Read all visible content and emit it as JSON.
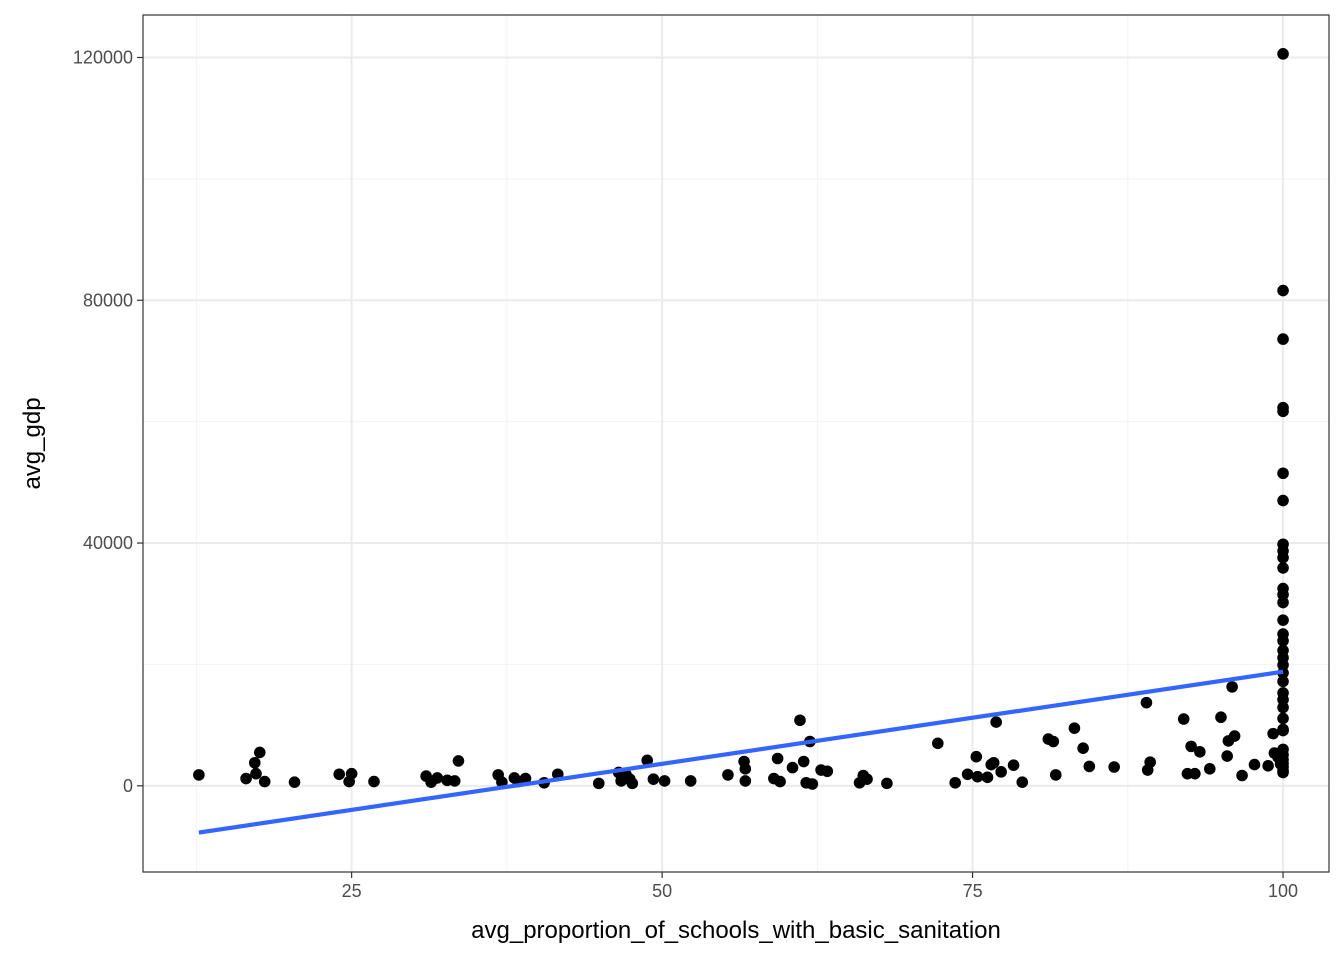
{
  "chart_data": {
    "type": "scatter",
    "title": "",
    "xlabel": "avg_proportion_of_schools_with_basic_sanitation",
    "ylabel": "avg_gdp",
    "xlim": [
      8.2,
      103.7
    ],
    "ylim": [
      -14200,
      127000
    ],
    "x_ticks": [
      25,
      50,
      75,
      100
    ],
    "x_tick_labels": [
      "25",
      "50",
      "75",
      "100"
    ],
    "y_ticks": [
      0,
      40000,
      80000,
      120000
    ],
    "y_tick_labels": [
      "0",
      "40000",
      "80000",
      "120000"
    ],
    "grid": true,
    "legend": "none",
    "point_color": "#000000",
    "trend_color": "#3366FF",
    "trend_line": {
      "x": [
        12.7,
        100
      ],
      "y": [
        -7700,
        18800
      ]
    },
    "points": [
      {
        "x": 12.7,
        "y": 1800
      },
      {
        "x": 16.5,
        "y": 1200
      },
      {
        "x": 17.2,
        "y": 3800
      },
      {
        "x": 17.3,
        "y": 2000
      },
      {
        "x": 17.6,
        "y": 5500
      },
      {
        "x": 18.0,
        "y": 700
      },
      {
        "x": 20.4,
        "y": 600
      },
      {
        "x": 24.0,
        "y": 1900
      },
      {
        "x": 24.8,
        "y": 700
      },
      {
        "x": 25.0,
        "y": 2000
      },
      {
        "x": 26.8,
        "y": 700
      },
      {
        "x": 31.0,
        "y": 1600
      },
      {
        "x": 31.4,
        "y": 600
      },
      {
        "x": 31.9,
        "y": 1300
      },
      {
        "x": 32.7,
        "y": 900
      },
      {
        "x": 33.3,
        "y": 800
      },
      {
        "x": 33.6,
        "y": 4100
      },
      {
        "x": 36.8,
        "y": 1800
      },
      {
        "x": 37.1,
        "y": 600
      },
      {
        "x": 38.1,
        "y": 1300
      },
      {
        "x": 38.4,
        "y": 700
      },
      {
        "x": 39.0,
        "y": 1200
      },
      {
        "x": 40.5,
        "y": 500
      },
      {
        "x": 41.6,
        "y": 1900
      },
      {
        "x": 44.9,
        "y": 400
      },
      {
        "x": 46.5,
        "y": 2200
      },
      {
        "x": 46.7,
        "y": 800
      },
      {
        "x": 47.1,
        "y": 1800
      },
      {
        "x": 47.4,
        "y": 1100
      },
      {
        "x": 47.6,
        "y": 400
      },
      {
        "x": 48.8,
        "y": 4200
      },
      {
        "x": 49.3,
        "y": 1100
      },
      {
        "x": 50.2,
        "y": 800
      },
      {
        "x": 52.3,
        "y": 800
      },
      {
        "x": 55.3,
        "y": 1800
      },
      {
        "x": 56.6,
        "y": 4000
      },
      {
        "x": 56.7,
        "y": 2800
      },
      {
        "x": 56.7,
        "y": 800
      },
      {
        "x": 59.0,
        "y": 1200
      },
      {
        "x": 59.3,
        "y": 4500
      },
      {
        "x": 59.5,
        "y": 700
      },
      {
        "x": 60.5,
        "y": 3000
      },
      {
        "x": 61.1,
        "y": 10800
      },
      {
        "x": 61.4,
        "y": 4000
      },
      {
        "x": 61.6,
        "y": 500
      },
      {
        "x": 61.9,
        "y": 7300
      },
      {
        "x": 62.1,
        "y": 300
      },
      {
        "x": 62.8,
        "y": 2600
      },
      {
        "x": 63.3,
        "y": 2400
      },
      {
        "x": 65.9,
        "y": 500
      },
      {
        "x": 66.2,
        "y": 1700
      },
      {
        "x": 66.5,
        "y": 1100
      },
      {
        "x": 68.1,
        "y": 400
      },
      {
        "x": 72.2,
        "y": 7000
      },
      {
        "x": 73.6,
        "y": 500
      },
      {
        "x": 74.6,
        "y": 1900
      },
      {
        "x": 75.3,
        "y": 4800
      },
      {
        "x": 75.4,
        "y": 1500
      },
      {
        "x": 76.2,
        "y": 1400
      },
      {
        "x": 76.5,
        "y": 3500
      },
      {
        "x": 76.7,
        "y": 3800
      },
      {
        "x": 76.9,
        "y": 10500
      },
      {
        "x": 77.3,
        "y": 2300
      },
      {
        "x": 78.3,
        "y": 3400
      },
      {
        "x": 79.0,
        "y": 600
      },
      {
        "x": 81.1,
        "y": 7700
      },
      {
        "x": 81.5,
        "y": 7300
      },
      {
        "x": 81.7,
        "y": 1800
      },
      {
        "x": 83.2,
        "y": 9500
      },
      {
        "x": 83.9,
        "y": 6200
      },
      {
        "x": 84.4,
        "y": 3200
      },
      {
        "x": 86.4,
        "y": 3100
      },
      {
        "x": 89.0,
        "y": 13700
      },
      {
        "x": 89.1,
        "y": 2600
      },
      {
        "x": 89.3,
        "y": 3900
      },
      {
        "x": 92.0,
        "y": 11000
      },
      {
        "x": 92.3,
        "y": 2000
      },
      {
        "x": 92.6,
        "y": 6500
      },
      {
        "x": 92.9,
        "y": 2000
      },
      {
        "x": 93.3,
        "y": 5600
      },
      {
        "x": 94.1,
        "y": 2800
      },
      {
        "x": 95.0,
        "y": 11300
      },
      {
        "x": 95.5,
        "y": 4900
      },
      {
        "x": 95.6,
        "y": 7400
      },
      {
        "x": 95.9,
        "y": 16300
      },
      {
        "x": 96.1,
        "y": 8200
      },
      {
        "x": 96.7,
        "y": 1700
      },
      {
        "x": 97.7,
        "y": 3500
      },
      {
        "x": 98.8,
        "y": 3300
      },
      {
        "x": 99.2,
        "y": 8600
      },
      {
        "x": 99.3,
        "y": 5400
      },
      {
        "x": 99.6,
        "y": 4700
      },
      {
        "x": 99.8,
        "y": 3600
      },
      {
        "x": 100,
        "y": 120600
      },
      {
        "x": 100,
        "y": 81600
      },
      {
        "x": 100,
        "y": 73600
      },
      {
        "x": 100,
        "y": 62300
      },
      {
        "x": 100,
        "y": 61700
      },
      {
        "x": 100,
        "y": 51500
      },
      {
        "x": 100,
        "y": 47000
      },
      {
        "x": 100,
        "y": 39800
      },
      {
        "x": 100,
        "y": 38700
      },
      {
        "x": 100,
        "y": 37600
      },
      {
        "x": 100,
        "y": 35900
      },
      {
        "x": 100,
        "y": 32500
      },
      {
        "x": 100,
        "y": 31500
      },
      {
        "x": 100,
        "y": 30200
      },
      {
        "x": 100,
        "y": 27300
      },
      {
        "x": 100,
        "y": 25000
      },
      {
        "x": 100,
        "y": 23900
      },
      {
        "x": 100,
        "y": 22300
      },
      {
        "x": 100,
        "y": 21100
      },
      {
        "x": 100,
        "y": 19900
      },
      {
        "x": 100,
        "y": 18600
      },
      {
        "x": 100,
        "y": 17200
      },
      {
        "x": 100,
        "y": 15300
      },
      {
        "x": 100,
        "y": 14200
      },
      {
        "x": 100,
        "y": 12900
      },
      {
        "x": 100,
        "y": 11100
      },
      {
        "x": 100,
        "y": 9300
      },
      {
        "x": 100,
        "y": 9100
      },
      {
        "x": 100,
        "y": 6000
      },
      {
        "x": 100,
        "y": 5100
      },
      {
        "x": 100,
        "y": 4300
      },
      {
        "x": 100,
        "y": 3700
      },
      {
        "x": 100,
        "y": 3100
      },
      {
        "x": 100,
        "y": 2500
      },
      {
        "x": 100,
        "y": 2200
      }
    ]
  }
}
